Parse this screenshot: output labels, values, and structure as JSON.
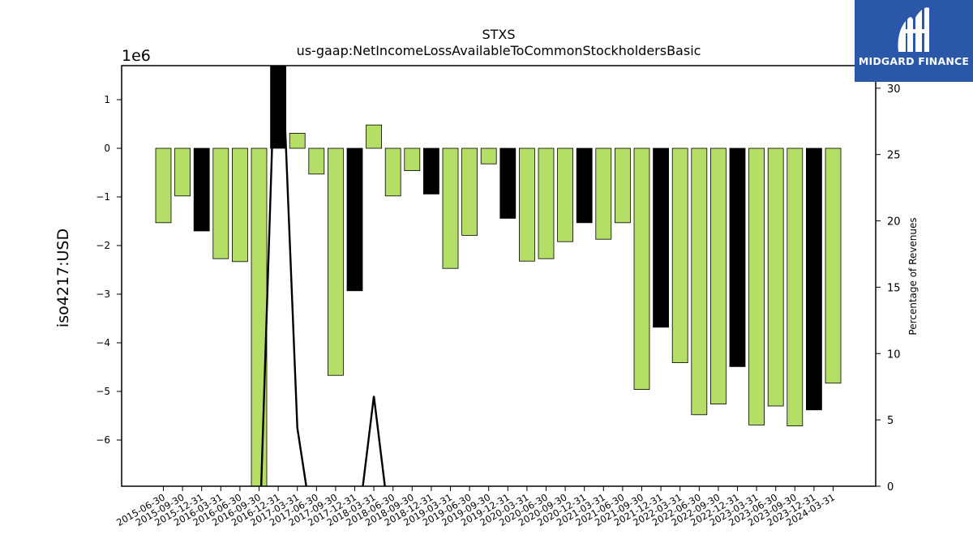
{
  "chart_data": {
    "type": "bar",
    "title": "STXS",
    "subtitle": "us-gaap:NetIncomeLossAvailableToCommonStockholdersBasic",
    "ylabel": "iso4217:USD",
    "y_scale_label": "1e6",
    "y2label": "Percentage of Revenues",
    "ylim": [
      -6.95,
      1.7
    ],
    "y2lim": [
      0,
      31.7
    ],
    "yticks": [
      -6,
      -5,
      -4,
      -3,
      -2,
      -1,
      0,
      1
    ],
    "y2ticks": [
      0,
      5,
      10,
      15,
      20,
      25,
      30
    ],
    "categories": [
      "2015-06-30",
      "2015-09-30",
      "2015-12-31",
      "2016-03-31",
      "2016-06-30",
      "2016-09-30",
      "2016-12-31",
      "2017-03-31",
      "2017-06-30",
      "2017-09-30",
      "2017-12-31",
      "2018-03-31",
      "2018-06-30",
      "2018-09-30",
      "2018-12-31",
      "2019-03-31",
      "2019-06-30",
      "2019-09-30",
      "2019-12-31",
      "2020-03-31",
      "2020-06-30",
      "2020-09-30",
      "2020-12-31",
      "2021-03-31",
      "2021-06-30",
      "2021-09-30",
      "2021-12-31",
      "2022-03-31",
      "2022-06-30",
      "2022-09-30",
      "2022-12-31",
      "2023-03-31",
      "2023-06-30",
      "2023-09-30",
      "2023-12-31",
      "2024-03-31"
    ],
    "series": [
      {
        "kind": "bar",
        "values": [
          -1.53,
          -0.98,
          -1.7,
          -2.27,
          -2.33,
          -7.0,
          2.0,
          0.31,
          -0.53,
          -4.67,
          -2.93,
          0.48,
          -0.98,
          -0.46,
          -0.94,
          -2.47,
          -1.79,
          -0.32,
          -1.44,
          -2.32,
          -2.27,
          -1.92,
          -1.53,
          -1.87,
          -1.53,
          -4.96,
          -3.68,
          -4.41,
          -5.48,
          -5.26,
          -4.49,
          -5.69,
          -5.3,
          -5.71,
          -5.38,
          -4.83
        ],
        "colors": [
          "#b5de67",
          "#b5de67",
          "#000000",
          "#b5de67",
          "#b5de67",
          "#b5de67",
          "#000000",
          "#b5de67",
          "#b5de67",
          "#b5de67",
          "#000000",
          "#b5de67",
          "#b5de67",
          "#b5de67",
          "#000000",
          "#b5de67",
          "#b5de67",
          "#b5de67",
          "#000000",
          "#b5de67",
          "#b5de67",
          "#b5de67",
          "#000000",
          "#b5de67",
          "#b5de67",
          "#b5de67",
          "#000000",
          "#b5de67",
          "#b5de67",
          "#b5de67",
          "#000000",
          "#b5de67",
          "#b5de67",
          "#b5de67",
          "#000000",
          "#b5de67"
        ]
      },
      {
        "kind": "line",
        "axis": "right",
        "color": "#000000",
        "values": [
          null,
          null,
          null,
          null,
          null,
          -5,
          40,
          4.4,
          -5,
          null,
          -5,
          6.8,
          -5,
          null,
          null,
          null,
          null,
          null,
          null,
          null,
          null,
          null,
          null,
          null,
          null,
          null,
          null,
          null,
          null,
          null,
          null,
          null,
          null,
          null,
          null,
          null
        ]
      }
    ]
  },
  "logo": {
    "name": "MIDGARD FINANCE",
    "color": "#2a57a8"
  }
}
